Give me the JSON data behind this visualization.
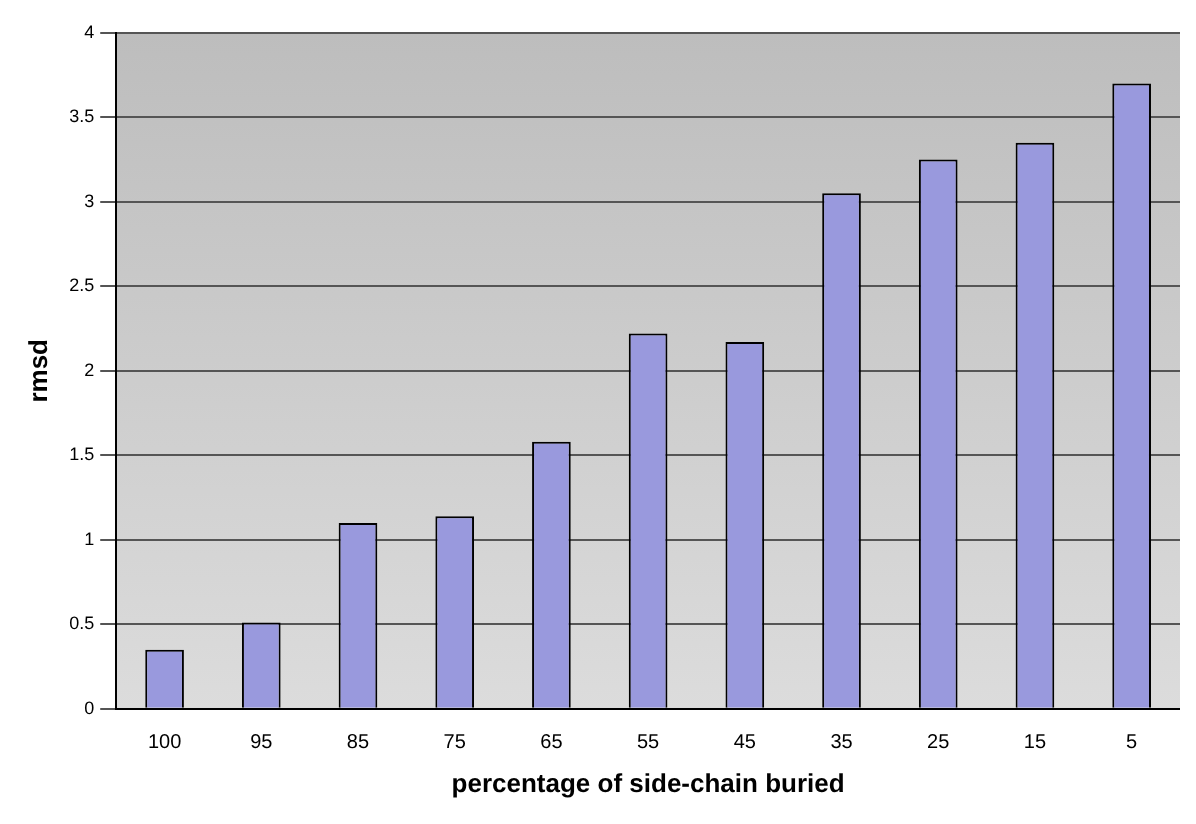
{
  "chart_data": {
    "type": "bar",
    "xlabel": "percentage of side-chain buried",
    "ylabel": "rmsd",
    "categories": [
      "100",
      "95",
      "85",
      "75",
      "65",
      "55",
      "45",
      "35",
      "25",
      "15",
      "5"
    ],
    "values": [
      0.35,
      0.51,
      1.1,
      1.14,
      1.58,
      2.22,
      2.17,
      3.05,
      3.25,
      3.35,
      3.7
    ],
    "color": "#9999dd",
    "ylim": [
      0,
      4
    ],
    "yticks": [
      0,
      0.5,
      1,
      1.5,
      2,
      2.5,
      3,
      3.5,
      4
    ],
    "grid": "y",
    "legend": false
  }
}
